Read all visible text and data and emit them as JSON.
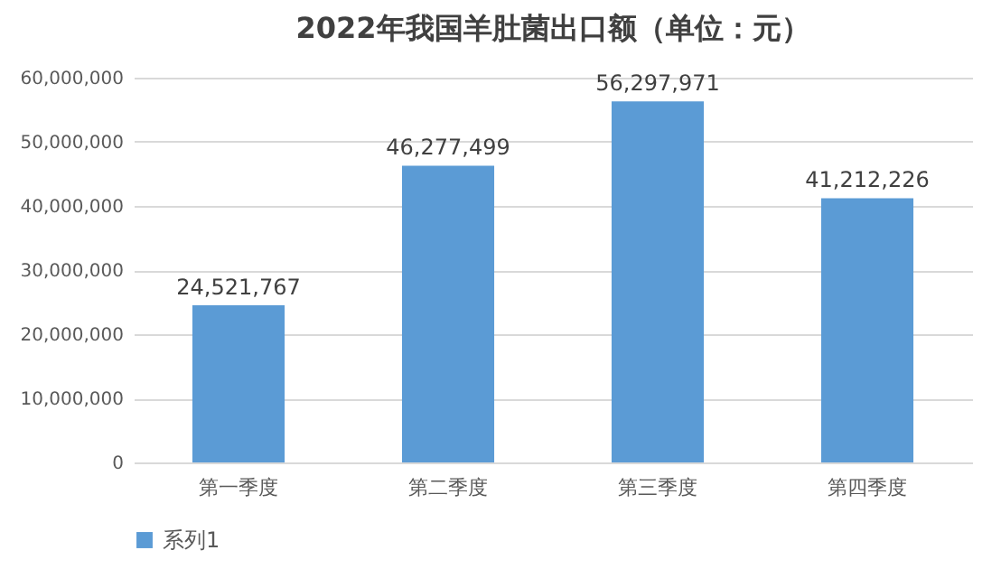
{
  "chart_data": {
    "type": "bar",
    "title": "2022年我国羊肚菌出口额（单位：元）",
    "categories": [
      "第一季度",
      "第二季度",
      "第三季度",
      "第四季度"
    ],
    "series": [
      {
        "name": "系列1",
        "color": "#5b9bd5",
        "values": [
          24521767,
          46277499,
          56297971,
          41212226
        ]
      }
    ],
    "value_labels": [
      "24,521,767",
      "46,277,499",
      "56,297,971",
      "41,212,226"
    ],
    "ylim": [
      0,
      60000000
    ],
    "yticks": [
      0,
      {
        "value": 10000000,
        "label": "10,000,000"
      },
      {
        "value": 20000000,
        "label": "20,000,000"
      },
      {
        "value": 30000000,
        "label": "30,000,000"
      },
      {
        "value": 40000000,
        "label": "40,000,000"
      },
      {
        "value": 50000000,
        "label": "50,000,000"
      },
      {
        "value": 60000000,
        "label": "60,000,000"
      }
    ],
    "grid": "y",
    "legend": "bottom"
  }
}
